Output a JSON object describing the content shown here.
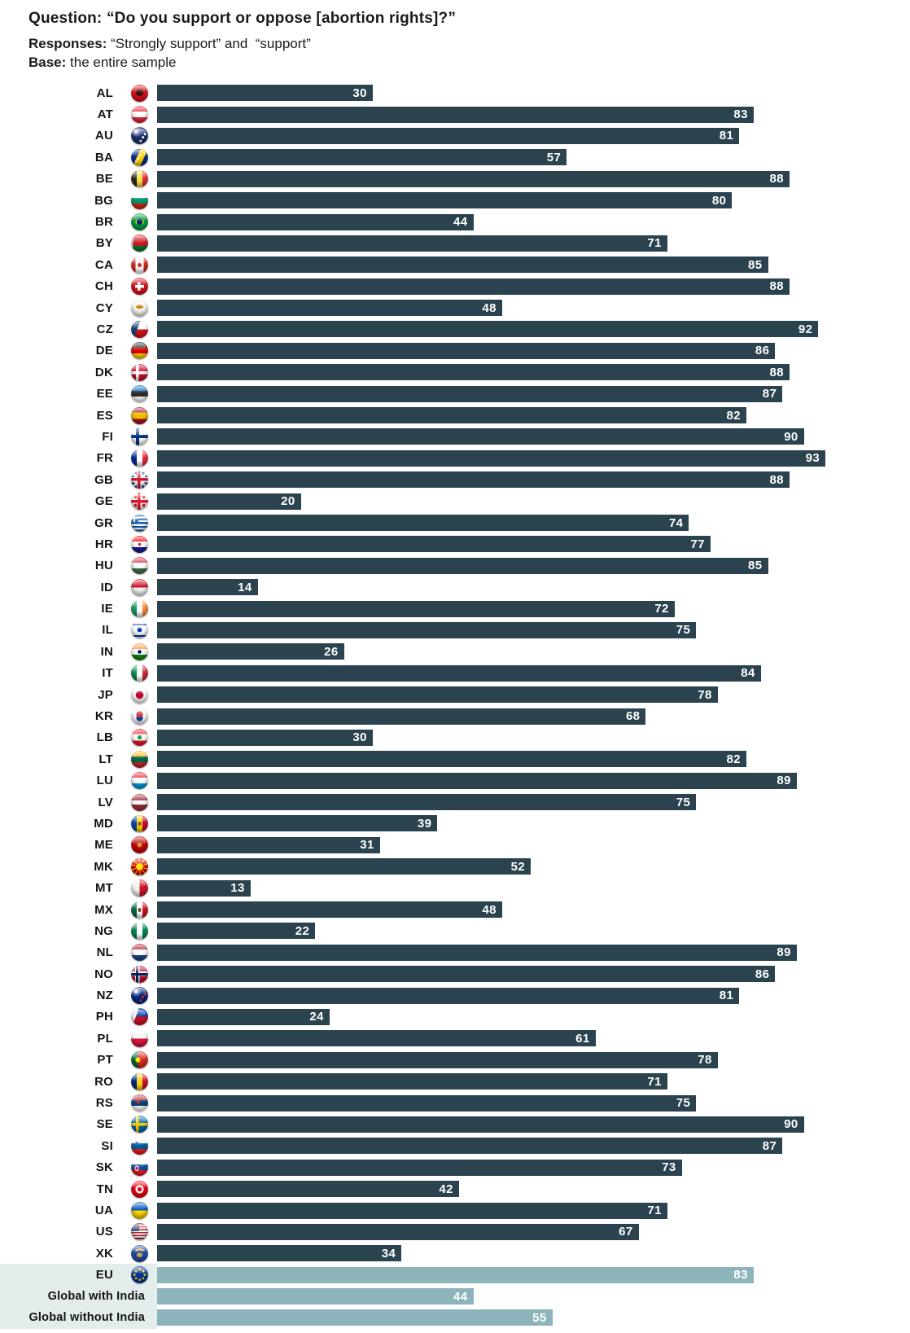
{
  "colors": {
    "bar_dark": "#2a434e",
    "bar_light": "#8db4bb",
    "summary_row_background": "#e3edec",
    "value_text": "#ffffff",
    "label_text": "#141414",
    "page_background": "#ffffff"
  },
  "chart_data": {
    "type": "bar",
    "orientation": "horizontal",
    "unit": "percent",
    "value_range": [
      0,
      100
    ],
    "grid": false,
    "value_labels_position": "inside-end",
    "title_label": "Question:",
    "title": "“Do you support or oppose [abortion rights]?”",
    "responses_label": "Responses:",
    "responses": "“Strongly support” and  “support”",
    "base_label": "Base:",
    "base": "the entire sample",
    "categories": [
      "AL",
      "AT",
      "AU",
      "BA",
      "BE",
      "BG",
      "BR",
      "BY",
      "CA",
      "CH",
      "CY",
      "CZ",
      "DE",
      "DK",
      "EE",
      "ES",
      "FI",
      "FR",
      "GB",
      "GE",
      "GR",
      "HR",
      "HU",
      "ID",
      "IE",
      "IL",
      "IN",
      "IT",
      "JP",
      "KR",
      "LB",
      "LT",
      "LU",
      "LV",
      "MD",
      "ME",
      "MK",
      "MT",
      "MX",
      "NG",
      "NL",
      "NO",
      "NZ",
      "PH",
      "PL",
      "PT",
      "RO",
      "RS",
      "SE",
      "SI",
      "SK",
      "TN",
      "UA",
      "US",
      "XK",
      "EU",
      "Global with India",
      "Global without India"
    ],
    "values": [
      30,
      83,
      81,
      57,
      88,
      80,
      44,
      71,
      85,
      88,
      48,
      92,
      86,
      88,
      87,
      82,
      90,
      93,
      88,
      20,
      74,
      77,
      85,
      14,
      72,
      75,
      26,
      84,
      78,
      68,
      30,
      82,
      89,
      75,
      39,
      31,
      52,
      13,
      48,
      22,
      89,
      86,
      81,
      24,
      61,
      78,
      71,
      75,
      90,
      87,
      73,
      42,
      71,
      67,
      34,
      83,
      44,
      55
    ],
    "flags": [
      "al",
      "at",
      "au",
      "ba",
      "be",
      "bg",
      "br",
      "by",
      "ca",
      "ch",
      "cy",
      "cz",
      "de",
      "dk",
      "ee",
      "es",
      "fi",
      "fr",
      "gb",
      "ge",
      "gr",
      "hr",
      "hu",
      "id",
      "ie",
      "il",
      "in",
      "it",
      "jp",
      "kr",
      "lb",
      "lt",
      "lu",
      "lv",
      "md",
      "me",
      "mk",
      "mt",
      "mx",
      "ng",
      "nl",
      "no",
      "nz",
      "ph",
      "pl",
      "pt",
      "ro",
      "rs",
      "se",
      "si",
      "sk",
      "tn",
      "ua",
      "us",
      "xk",
      "eu",
      null,
      null
    ],
    "summary_rows_start_index": 55,
    "summary_row_labels": [
      "EU",
      "Global with India",
      "Global without India"
    ]
  }
}
